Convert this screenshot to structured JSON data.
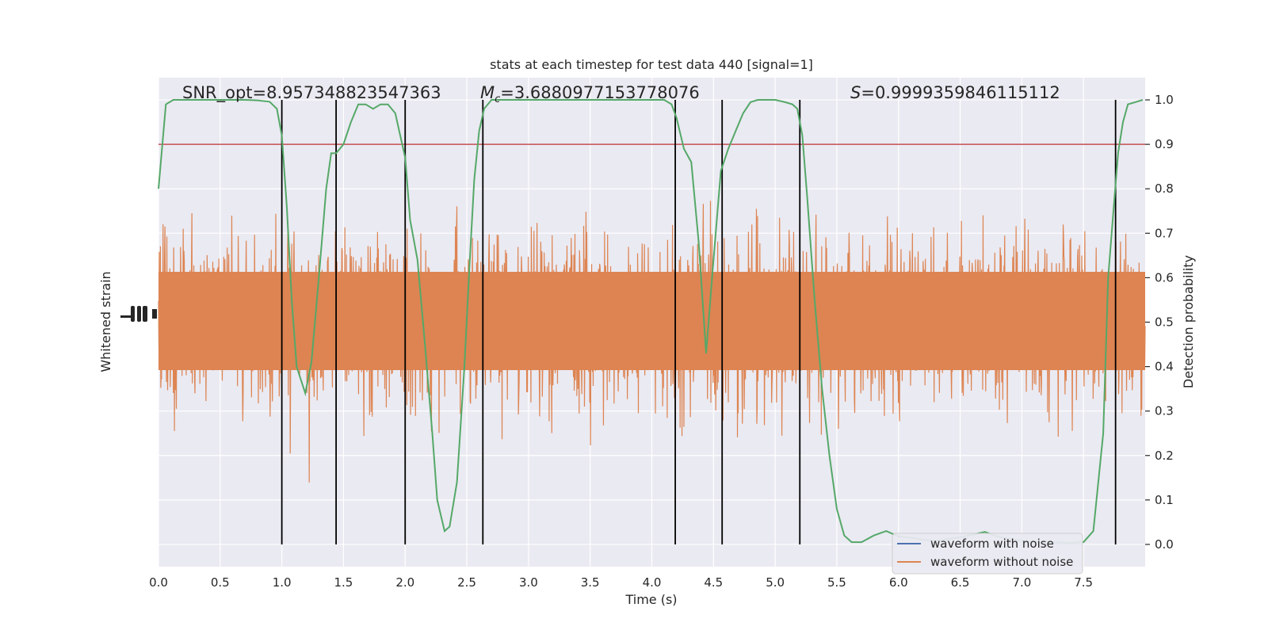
{
  "chart_data": {
    "type": "line",
    "title": "stats at each timestep for test data 440 [signal=1]",
    "xlabel": "Time (s)",
    "ylabel_left": "Whitened strain",
    "ylabel_right": "Detection probability",
    "xlim": [
      0.0,
      8.0
    ],
    "ylim_right": [
      -0.05,
      1.05
    ],
    "x_ticks": [
      "0.0",
      "0.5",
      "1.0",
      "1.5",
      "2.0",
      "2.5",
      "3.0",
      "3.5",
      "4.0",
      "4.5",
      "5.0",
      "5.5",
      "6.0",
      "6.5",
      "7.0",
      "7.5"
    ],
    "y_ticks_right": [
      "0.0",
      "0.1",
      "0.2",
      "0.3",
      "0.4",
      "0.5",
      "0.6",
      "0.7",
      "0.8",
      "0.9",
      "1.0"
    ],
    "annotations": {
      "snr": "SNR_opt=8.957348823547363",
      "mc_symbol": "M",
      "mc_sub": "c",
      "mc_value": "=3.6880977153778076",
      "s_symbol": "S",
      "s_value": "=0.9999359846115112"
    },
    "threshold": 0.9,
    "vertical_lines_x": [
      1.0,
      1.44,
      2.0,
      2.63,
      4.19,
      4.57,
      5.2,
      7.76
    ],
    "legend": {
      "placement": "lower-right",
      "entries": [
        {
          "label": "waveform with noise",
          "color": "#4c72b0"
        },
        {
          "label": "waveform without noise",
          "color": "#dd8452"
        }
      ]
    },
    "series": [
      {
        "role": "detection probability",
        "color": "#55a868",
        "x": [
          0.0,
          0.06,
          0.12,
          0.2,
          0.3,
          0.4,
          0.5,
          0.6,
          0.7,
          0.8,
          0.9,
          0.96,
          1.0,
          1.04,
          1.08,
          1.12,
          1.19,
          1.24,
          1.3,
          1.36,
          1.4,
          1.44,
          1.5,
          1.56,
          1.62,
          1.68,
          1.74,
          1.8,
          1.86,
          1.92,
          1.96,
          2.0,
          2.04,
          2.1,
          2.16,
          2.22,
          2.26,
          2.32,
          2.36,
          2.42,
          2.48,
          2.52,
          2.56,
          2.6,
          2.64,
          2.7,
          2.8,
          3.0,
          3.2,
          3.4,
          3.6,
          3.8,
          4.0,
          4.1,
          4.16,
          4.2,
          4.26,
          4.32,
          4.38,
          4.44,
          4.5,
          4.56,
          4.62,
          4.68,
          4.74,
          4.8,
          4.86,
          4.92,
          5.0,
          5.08,
          5.14,
          5.18,
          5.22,
          5.26,
          5.32,
          5.38,
          5.44,
          5.5,
          5.56,
          5.62,
          5.7,
          5.8,
          5.9,
          6.0,
          6.1,
          6.2,
          6.3,
          6.4,
          6.5,
          6.6,
          6.7,
          6.8,
          6.9,
          7.0,
          7.1,
          7.2,
          7.3,
          7.4,
          7.5,
          7.58,
          7.66,
          7.7,
          7.74,
          7.78,
          7.82,
          7.86,
          7.92,
          7.98
        ],
        "y": [
          0.8,
          0.99,
          1.0,
          1.0,
          1.0,
          1.0,
          1.0,
          1.0,
          1.0,
          0.999,
          0.996,
          0.98,
          0.92,
          0.76,
          0.55,
          0.4,
          0.34,
          0.41,
          0.6,
          0.8,
          0.88,
          0.88,
          0.9,
          0.95,
          0.99,
          0.99,
          0.98,
          0.99,
          0.99,
          0.97,
          0.92,
          0.87,
          0.73,
          0.64,
          0.45,
          0.25,
          0.1,
          0.03,
          0.04,
          0.14,
          0.4,
          0.62,
          0.82,
          0.93,
          0.98,
          1.0,
          1.0,
          1.0,
          1.0,
          1.0,
          1.0,
          1.0,
          1.0,
          1.0,
          0.99,
          0.96,
          0.89,
          0.86,
          0.68,
          0.43,
          0.64,
          0.84,
          0.89,
          0.93,
          0.97,
          0.995,
          1.0,
          1.0,
          1.0,
          0.995,
          0.99,
          0.98,
          0.92,
          0.78,
          0.55,
          0.35,
          0.2,
          0.08,
          0.02,
          0.005,
          0.005,
          0.02,
          0.03,
          0.018,
          0.015,
          0.01,
          0.008,
          0.012,
          0.016,
          0.022,
          0.028,
          0.018,
          0.012,
          0.008,
          0.006,
          0.004,
          0.004,
          0.003,
          0.005,
          0.03,
          0.25,
          0.6,
          0.74,
          0.88,
          0.95,
          0.99,
          0.995,
          1.0
        ]
      }
    ]
  }
}
